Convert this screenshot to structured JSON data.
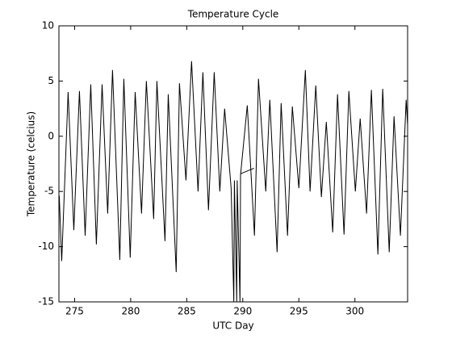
{
  "chart_data": {
    "type": "line",
    "title": "Temperature Cycle",
    "x_label": "UTC Day",
    "y_label": "Temperature (celcius)",
    "xlim": [
      273.6,
      304.7
    ],
    "ylim": [
      -15,
      10
    ],
    "xticks": [
      275,
      280,
      285,
      290,
      295,
      300
    ],
    "yticks": [
      -15,
      -10,
      -5,
      0,
      5,
      10
    ],
    "series": [
      {
        "name": "Temperature",
        "color": "#000000",
        "x": [
          273.63,
          273.85,
          274.42,
          274.93,
          275.43,
          275.94,
          276.44,
          276.94,
          277.45,
          277.95,
          278.38,
          279.03,
          279.39,
          279.96,
          280.4,
          280.97,
          281.4,
          282.05,
          282.34,
          283.06,
          283.35,
          284.06,
          284.35,
          284.93,
          285.43,
          286.01,
          286.44,
          286.94,
          287.45,
          287.95,
          288.38,
          288.96,
          289.2,
          289.25,
          289.46,
          289.5,
          289.75,
          289.8,
          290.4,
          291.04,
          null,
          289.8,
          291.0,
          null,
          291.04,
          291.4,
          292.05,
          292.41,
          293.06,
          293.42,
          293.99,
          294.42,
          295.0,
          295.58,
          296.0,
          296.51,
          297.01,
          297.45,
          298.02,
          298.45,
          299.03,
          299.46,
          300.04,
          300.47,
          301.04,
          301.47,
          302.05,
          302.48,
          303.06,
          303.49,
          304.06,
          304.57,
          304.7
        ],
        "values": [
          -5.4,
          -11.3,
          4,
          -8.5,
          4.1,
          -9,
          4.7,
          -9.8,
          4.7,
          -7,
          6,
          -11.2,
          5.2,
          -11,
          4,
          -7,
          5,
          -7.5,
          5,
          -9.5,
          3.8,
          -12.3,
          4.8,
          -4,
          6.8,
          -5,
          5.8,
          -6.7,
          5.8,
          -5,
          2.5,
          -4.7,
          -15,
          -4,
          -15,
          -4,
          -15,
          -3.5,
          2.8,
          -9,
          null,
          -3.4,
          -2.9,
          null,
          -9,
          5.2,
          -5,
          3.3,
          -10.5,
          3,
          -9,
          2.7,
          -4.7,
          6,
          -5,
          4.6,
          -5.5,
          1.3,
          -8.7,
          3.8,
          -8.9,
          4.1,
          -5,
          1.6,
          -7,
          4.2,
          -10.7,
          4.3,
          -10.5,
          1.8,
          -9,
          3.3,
          1
        ]
      }
    ]
  }
}
